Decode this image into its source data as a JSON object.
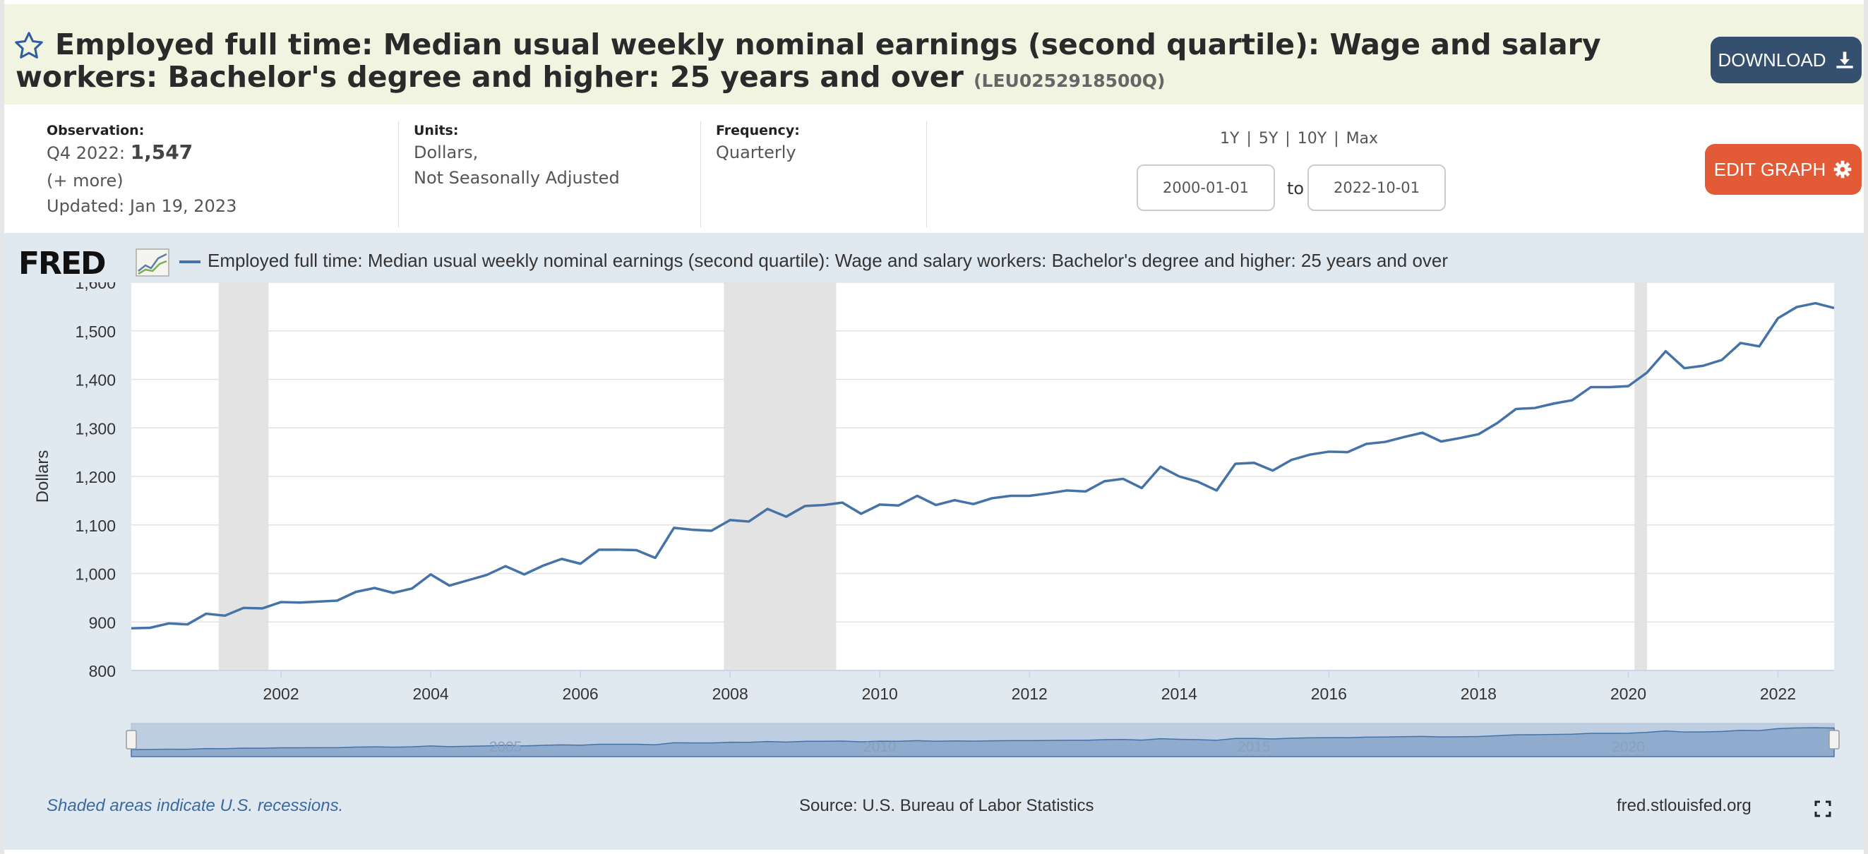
{
  "header": {
    "title": "Employed full time: Median usual weekly nominal earnings (second quartile): Wage and salary workers: Bachelor's degree and higher: 25 years and over",
    "series_id": "(LEU0252918500Q)",
    "download_label": "DOWNLOAD",
    "colors": {
      "background": "#f1f4e1",
      "download_button": "#34506e"
    }
  },
  "meta": {
    "observation_label": "Observation:",
    "observation_period": "Q4 2022:",
    "observation_value": "1,547",
    "more_link": "(+ more)",
    "updated": "Updated: Jan 19, 2023",
    "units_label": "Units:",
    "units_line1": "Dollars,",
    "units_line2": "Not Seasonally Adjusted",
    "frequency_label": "Frequency:",
    "frequency_value": "Quarterly",
    "range_1y": "1Y",
    "range_5y": "5Y",
    "range_10y": "10Y",
    "range_max": "Max",
    "range_sep": "|",
    "start_date": "2000-01-01",
    "to_label": "to",
    "end_date": "2022-10-01",
    "edit_graph_label": "EDIT GRAPH",
    "colors": {
      "edit_button": "#e25a36"
    }
  },
  "chart_area": {
    "logo_text": "FRED",
    "footnote": "Shaded areas indicate U.S. recessions.",
    "source": "Source: U.S. Bureau of Labor Statistics",
    "site": "fred.stlouisfed.org",
    "colors": {
      "background": "#e1e9f0",
      "line": "#4572a7",
      "recession": "#e3e3e3",
      "navigator": "#b8c9e0"
    }
  },
  "chart_data": {
    "type": "line",
    "ylabel": "Dollars",
    "xlim": [
      2000.0,
      2022.75
    ],
    "ylim": [
      800,
      1600
    ],
    "grid": true,
    "legend_position": "top",
    "y_ticks": [
      "800",
      "900",
      "1,000",
      "1,100",
      "1,200",
      "1,300",
      "1,400",
      "1,500",
      "1,600"
    ],
    "x_ticks": [
      "2002",
      "2004",
      "2006",
      "2008",
      "2010",
      "2012",
      "2014",
      "2016",
      "2018",
      "2020",
      "2022"
    ],
    "navigator_ticks": [
      "2005",
      "2010",
      "2015",
      "2020"
    ],
    "recessions": [
      [
        "2001-03",
        "2001-11"
      ],
      [
        "2007-12",
        "2009-06"
      ],
      [
        "2020-02",
        "2020-04"
      ]
    ],
    "series": [
      {
        "name": "Employed full time: Median usual weekly nominal earnings (second quartile): Wage and salary workers: Bachelor's degree and higher: 25 years and over",
        "start": "2000-Q1",
        "values": [
          887,
          888,
          897,
          895,
          917,
          913,
          929,
          928,
          941,
          940,
          942,
          944,
          962,
          970,
          960,
          969,
          998,
          975,
          986,
          997,
          1015,
          998,
          1016,
          1030,
          1020,
          1049,
          1049,
          1048,
          1032,
          1094,
          1090,
          1088,
          1110,
          1107,
          1133,
          1117,
          1139,
          1141,
          1146,
          1123,
          1142,
          1140,
          1160,
          1141,
          1151,
          1143,
          1155,
          1160,
          1160,
          1165,
          1171,
          1169,
          1190,
          1195,
          1176,
          1220,
          1200,
          1189,
          1171,
          1226,
          1228,
          1212,
          1234,
          1245,
          1251,
          1250,
          1267,
          1271,
          1281,
          1290,
          1272,
          1279,
          1287,
          1310,
          1339,
          1341,
          1350,
          1357,
          1384,
          1384,
          1386,
          1414,
          1458,
          1423,
          1428,
          1440,
          1475,
          1468,
          1526,
          1549,
          1557,
          1547
        ]
      }
    ]
  }
}
